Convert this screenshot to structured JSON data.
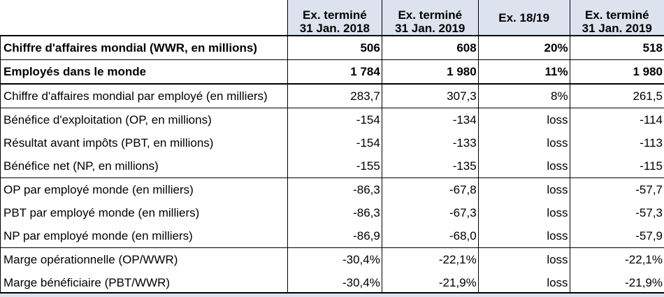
{
  "headers": [
    {
      "line1": "",
      "line2": ""
    },
    {
      "line1": "Ex. terminé",
      "line2": "31 Jan. 2018"
    },
    {
      "line1": "Ex. terminé",
      "line2": "31 Jan. 2019"
    },
    {
      "line1": "Ex. 18/19",
      "line2": ""
    },
    {
      "line1": "Ex. terminé",
      "line2": "31 Jan. 2019"
    }
  ],
  "rows": [
    {
      "label": "Chiffre d'affaires mondial (WWR, en millions)",
      "v1": "506",
      "v2": "608",
      "v3": "20%",
      "v4": "518"
    },
    {
      "label": "Employés dans le monde",
      "v1": "1 784",
      "v2": "1 980",
      "v3": "11%",
      "v4": "1 980"
    },
    {
      "label": "Chiffre d'affaires mondial par employé (en milliers)",
      "v1": "283,7",
      "v2": "307,3",
      "v3": "8%",
      "v4": "261,5"
    },
    {
      "label": "Bénéfice d'exploitation (OP, en millions)",
      "v1": "-154",
      "v2": "-134",
      "v3": "loss",
      "v4": "-114"
    },
    {
      "label": "Résultat avant impôts (PBT, en millions)",
      "v1": "-154",
      "v2": "-133",
      "v3": "loss",
      "v4": "-113"
    },
    {
      "label": "Bénéfice net (NP, en millions)",
      "v1": "-155",
      "v2": "-135",
      "v3": "loss",
      "v4": "-115"
    },
    {
      "label": "OP par employé monde (en milliers)",
      "v1": "-86,3",
      "v2": "-67,8",
      "v3": "loss",
      "v4": "-57,7"
    },
    {
      "label": "PBT par employé monde (en milliers)",
      "v1": "-86,3",
      "v2": "-67,3",
      "v3": "loss",
      "v4": "-57,3"
    },
    {
      "label": "NP par employé monde (en milliers)",
      "v1": "-86,9",
      "v2": "-68,0",
      "v3": "loss",
      "v4": "-57,9"
    },
    {
      "label": "Marge opérationnelle (OP/WWR)",
      "v1": "-30,4%",
      "v2": "-22,1%",
      "v3": "loss",
      "v4": "-22,1%"
    },
    {
      "label": "Marge bénéficiaire (PBT/WWR)",
      "v1": "-30,4%",
      "v2": "-21,9%",
      "v3": "loss",
      "v4": "-21,9%"
    }
  ],
  "colors": {
    "header_bg": "#dde3ee",
    "border": "#000000",
    "text": "#000000"
  }
}
